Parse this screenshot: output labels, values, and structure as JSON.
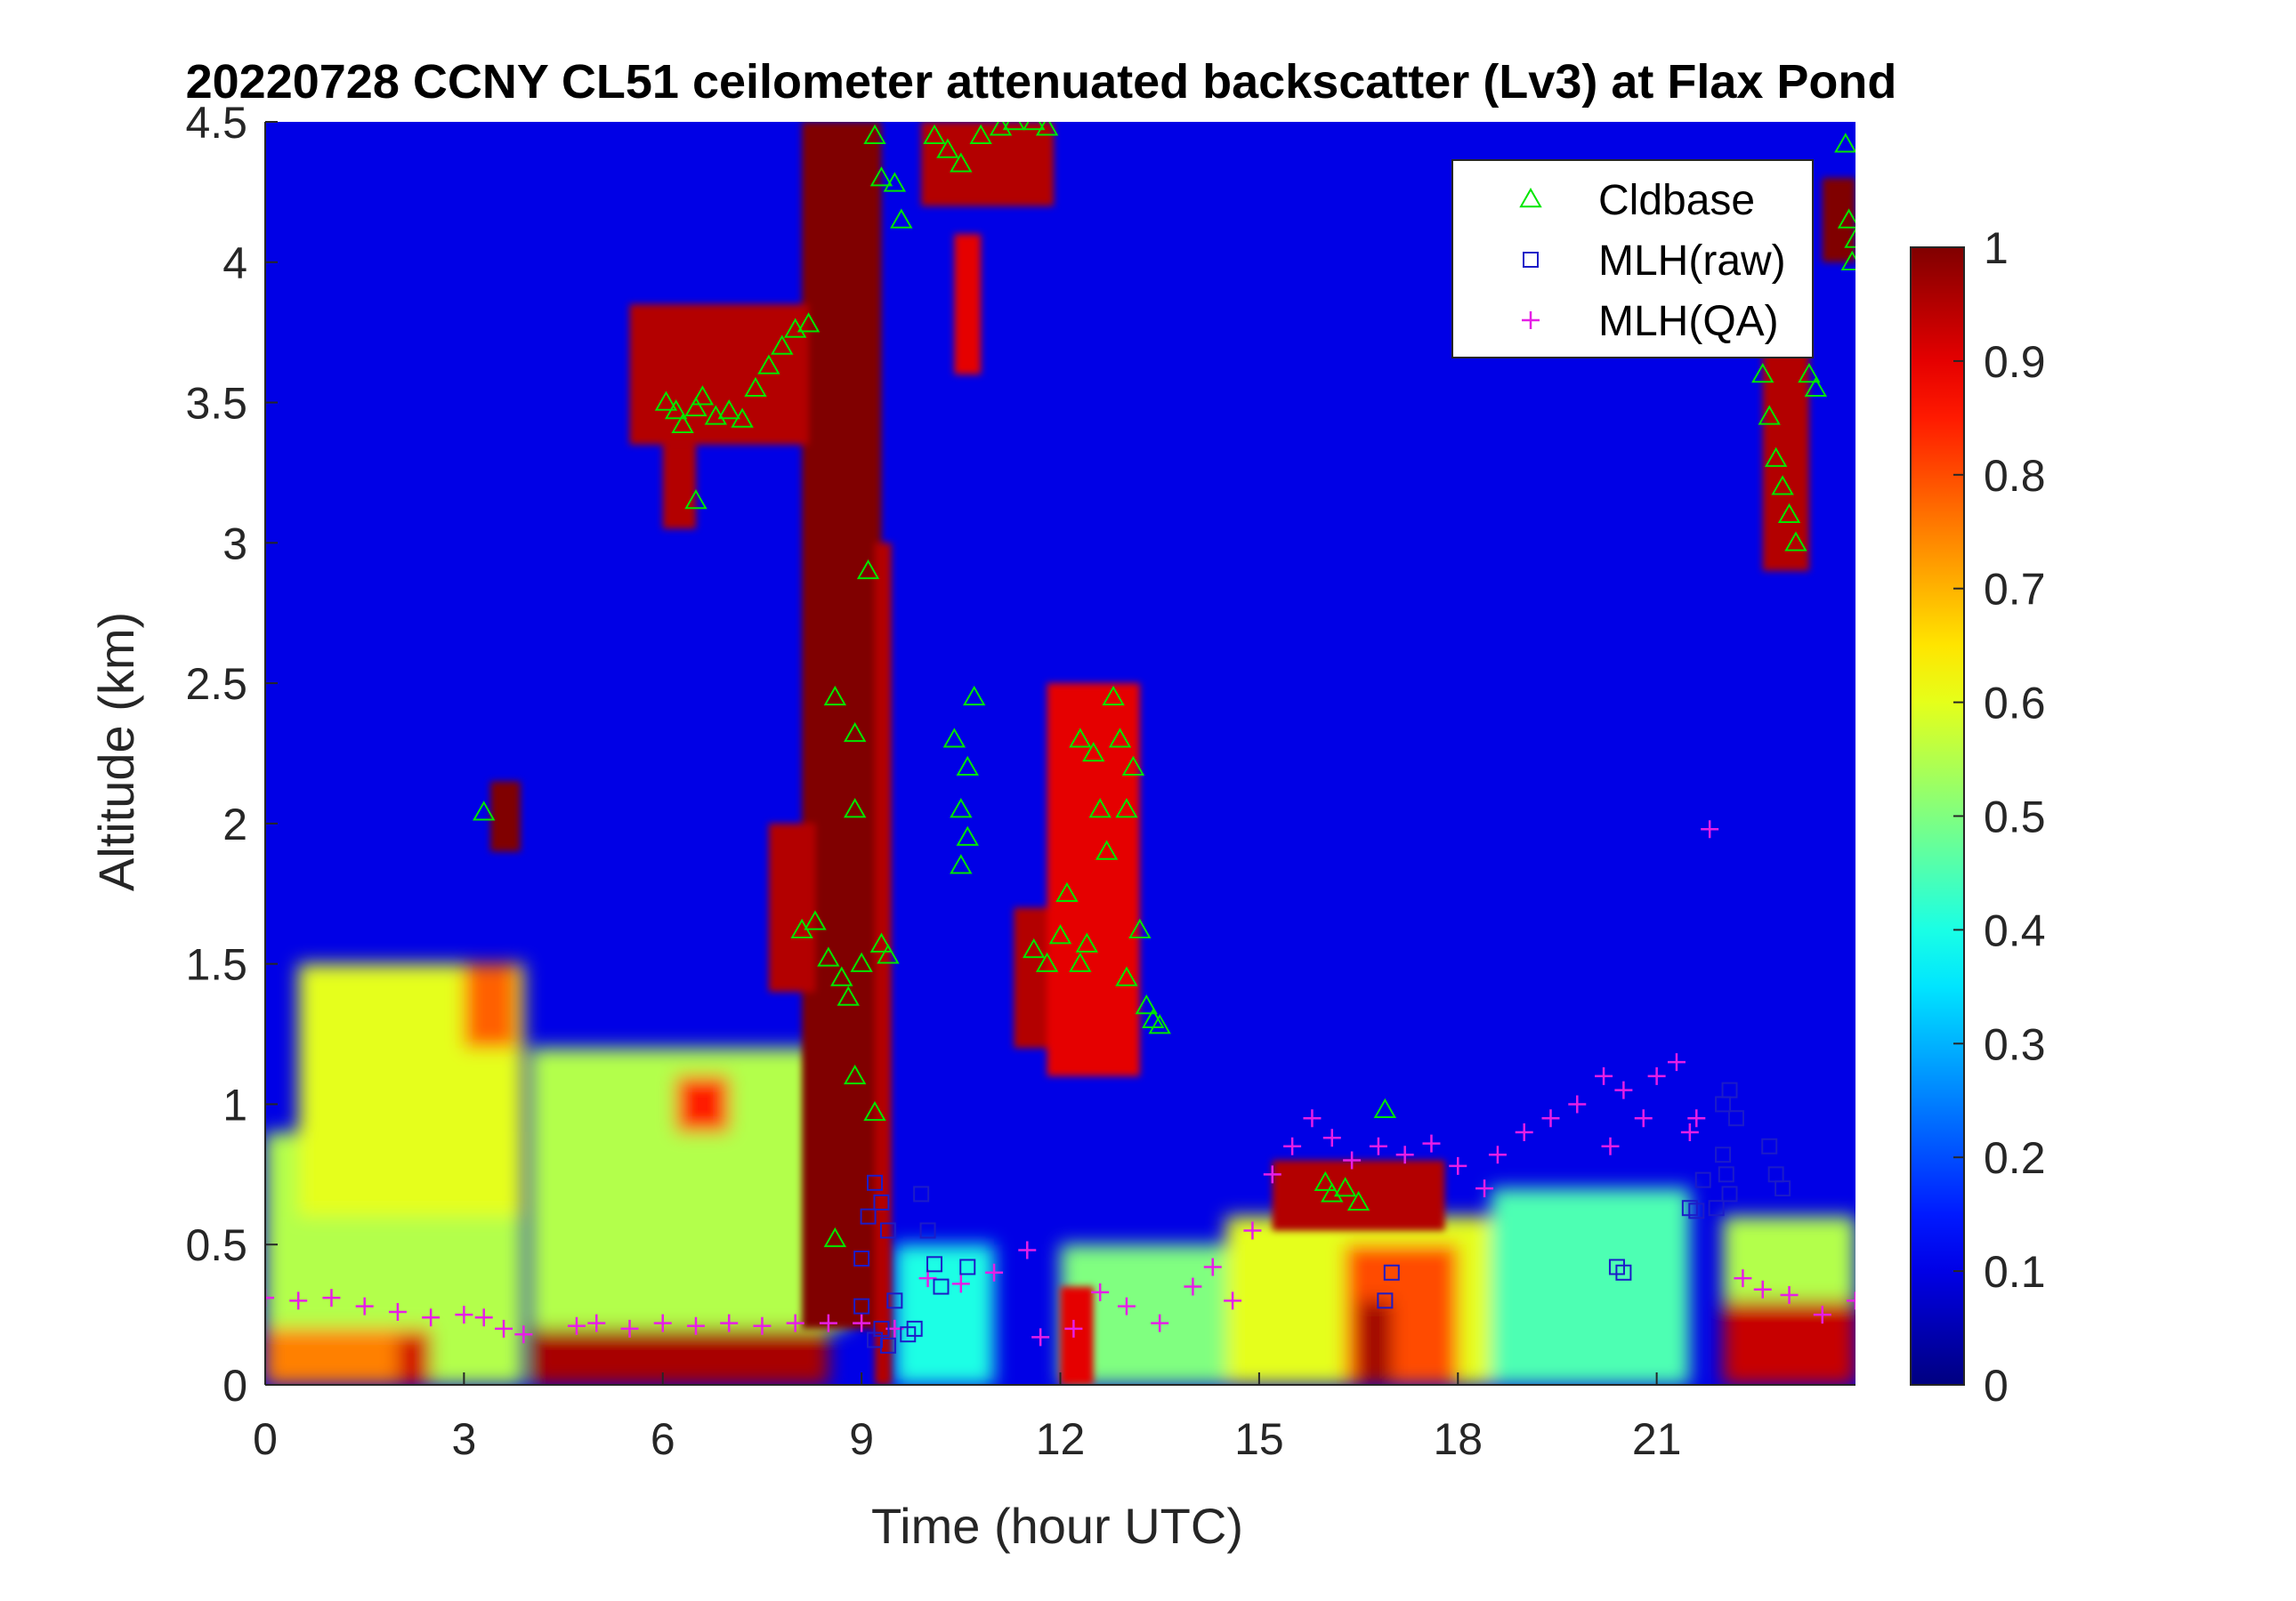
{
  "chart_data": {
    "type": "heatmap",
    "title": "20220728 CCNY CL51 ceilometer attenuated backscatter (Lv3) at Flax Pond",
    "xlabel": "Time (hour UTC)",
    "ylabel": "Altitude (km)",
    "xlim": [
      0,
      24
    ],
    "ylim": [
      0,
      4.5
    ],
    "x_ticks": [
      "0",
      "3",
      "6",
      "9",
      "12",
      "15",
      "18",
      "21"
    ],
    "y_ticks": [
      "0",
      "0.5",
      "1",
      "1.5",
      "2",
      "2.5",
      "3",
      "3.5",
      "4",
      "4.5"
    ],
    "colorbar": {
      "range": [
        0,
        1
      ],
      "ticks": [
        "0",
        "0.1",
        "0.2",
        "0.3",
        "0.4",
        "0.5",
        "0.6",
        "0.7",
        "0.8",
        "0.9",
        "1"
      ],
      "colormap": "jet"
    },
    "legend": {
      "position": "top-right",
      "entries": [
        {
          "label": "Cldbase",
          "marker": "triangle",
          "color": "#00e600"
        },
        {
          "label": "MLH(raw)",
          "marker": "square",
          "color": "#1c1cc8"
        },
        {
          "label": "MLH(QA)",
          "marker": "plus",
          "color": "#e61ee6"
        }
      ]
    },
    "backscatter_field": {
      "background": 0.1,
      "boundary_layer_features": [
        {
          "x": [
            0,
            3.9
          ],
          "y": [
            0,
            0.9
          ],
          "value": 0.55
        },
        {
          "x": [
            0.5,
            3.9
          ],
          "y": [
            0.6,
            1.5
          ],
          "value": 0.6
        },
        {
          "x": [
            3,
            3.8
          ],
          "y": [
            1.2,
            1.5
          ],
          "value": 0.78
        },
        {
          "x": [
            0,
            2.5
          ],
          "y": [
            0,
            0.2
          ],
          "value": 0.75
        },
        {
          "x": [
            2,
            2.5
          ],
          "y": [
            0,
            0.18
          ],
          "value": 0.92
        },
        {
          "x": [
            4,
            8.5
          ],
          "y": [
            0,
            0.2
          ],
          "value": 0.96
        },
        {
          "x": [
            4,
            8.8
          ],
          "y": [
            0.2,
            1.2
          ],
          "value": 0.55
        },
        {
          "x": [
            6.2,
            7
          ],
          "y": [
            0.9,
            1.1
          ],
          "value": 0.85
        },
        {
          "x": [
            9.5,
            11
          ],
          "y": [
            0,
            0.5
          ],
          "value": 0.4
        },
        {
          "x": [
            12,
            13.5
          ],
          "y": [
            0,
            0.2
          ],
          "value": 0.95
        },
        {
          "x": [
            12,
            14.5
          ],
          "y": [
            0,
            0.5
          ],
          "value": 0.5
        },
        {
          "x": [
            14.5,
            18.5
          ],
          "y": [
            0,
            0.6
          ],
          "value": 0.6
        },
        {
          "x": [
            16.3,
            18
          ],
          "y": [
            0,
            0.5
          ],
          "value": 0.8
        },
        {
          "x": [
            16.5,
            17
          ],
          "y": [
            0,
            0.3
          ],
          "value": 0.97
        },
        {
          "x": [
            18.5,
            21.5
          ],
          "y": [
            0,
            0.7
          ],
          "value": 0.45
        },
        {
          "x": [
            22,
            24
          ],
          "y": [
            0,
            0.3
          ],
          "value": 0.93
        },
        {
          "x": [
            22,
            24
          ],
          "y": [
            0.3,
            0.6
          ],
          "value": 0.55
        }
      ],
      "cloud_features": [
        {
          "x": [
            8.1,
            9.3
          ],
          "y": [
            0.2,
            4.5
          ],
          "value": 1.0
        },
        {
          "x": [
            9.2,
            9.45
          ],
          "y": [
            0,
            3.0
          ],
          "value": 0.95
        },
        {
          "x": [
            5.5,
            8.2
          ],
          "y": [
            3.35,
            3.85
          ],
          "value": 0.95
        },
        {
          "x": [
            3.4,
            3.85
          ],
          "y": [
            1.9,
            2.15
          ],
          "value": 1.0
        },
        {
          "x": [
            7.6,
            8.3
          ],
          "y": [
            1.4,
            2.0
          ],
          "value": 0.95
        },
        {
          "x": [
            11.3,
            12.6
          ],
          "y": [
            1.2,
            1.7
          ],
          "value": 0.95
        },
        {
          "x": [
            11.8,
            13.2
          ],
          "y": [
            1.1,
            2.5
          ],
          "value": 0.9
        },
        {
          "x": [
            9.9,
            11.9
          ],
          "y": [
            4.2,
            4.5
          ],
          "value": 0.95
        },
        {
          "x": [
            22.6,
            23.3
          ],
          "y": [
            2.9,
            3.7
          ],
          "value": 0.95
        },
        {
          "x": [
            23.5,
            24
          ],
          "y": [
            4.0,
            4.3
          ],
          "value": 1.0
        },
        {
          "x": [
            6,
            6.5
          ],
          "y": [
            3.05,
            3.35
          ],
          "value": 0.95
        },
        {
          "x": [
            10.4,
            10.8
          ],
          "y": [
            3.6,
            4.1
          ],
          "value": 0.9
        },
        {
          "x": [
            15.2,
            17.8
          ],
          "y": [
            0.55,
            0.8
          ],
          "value": 0.95
        },
        {
          "x": [
            12,
            12.5
          ],
          "y": [
            0,
            0.35
          ],
          "value": 0.9
        }
      ]
    },
    "series": [
      {
        "name": "Cldbase",
        "points": [
          [
            3.3,
            2.04
          ],
          [
            6.05,
            3.5
          ],
          [
            6.2,
            3.47
          ],
          [
            6.3,
            3.42
          ],
          [
            6.5,
            3.48
          ],
          [
            6.6,
            3.52
          ],
          [
            6.8,
            3.45
          ],
          [
            7.0,
            3.47
          ],
          [
            7.2,
            3.44
          ],
          [
            7.4,
            3.55
          ],
          [
            7.6,
            3.63
          ],
          [
            7.8,
            3.7
          ],
          [
            8.0,
            3.76
          ],
          [
            8.2,
            3.78
          ],
          [
            6.5,
            3.15
          ],
          [
            8.1,
            1.62
          ],
          [
            8.3,
            1.65
          ],
          [
            8.5,
            1.52
          ],
          [
            8.7,
            1.45
          ],
          [
            8.8,
            1.38
          ],
          [
            9.0,
            1.5
          ],
          [
            8.6,
            2.45
          ],
          [
            8.9,
            2.32
          ],
          [
            9.1,
            2.9
          ],
          [
            8.9,
            2.05
          ],
          [
            8.9,
            1.1
          ],
          [
            9.2,
            0.97
          ],
          [
            8.6,
            0.52
          ],
          [
            9.3,
            1.57
          ],
          [
            9.4,
            1.53
          ],
          [
            9.2,
            4.45
          ],
          [
            9.3,
            4.3
          ],
          [
            9.5,
            4.28
          ],
          [
            9.6,
            4.15
          ],
          [
            10.1,
            4.45
          ],
          [
            10.3,
            4.4
          ],
          [
            10.5,
            4.35
          ],
          [
            10.8,
            4.45
          ],
          [
            11.1,
            4.48
          ],
          [
            11.3,
            4.5
          ],
          [
            11.6,
            4.5
          ],
          [
            11.8,
            4.48
          ],
          [
            10.4,
            2.3
          ],
          [
            10.5,
            2.05
          ],
          [
            10.6,
            1.95
          ],
          [
            10.5,
            1.85
          ],
          [
            10.7,
            2.45
          ],
          [
            10.6,
            2.2
          ],
          [
            11.6,
            1.55
          ],
          [
            11.8,
            1.5
          ],
          [
            12.0,
            1.6
          ],
          [
            12.1,
            1.75
          ],
          [
            12.3,
            1.5
          ],
          [
            12.4,
            1.57
          ],
          [
            12.3,
            2.3
          ],
          [
            12.5,
            2.25
          ],
          [
            12.6,
            2.05
          ],
          [
            12.8,
            2.45
          ],
          [
            12.9,
            2.3
          ],
          [
            13.0,
            2.05
          ],
          [
            13.1,
            2.2
          ],
          [
            12.7,
            1.9
          ],
          [
            13.0,
            1.45
          ],
          [
            13.2,
            1.62
          ],
          [
            13.3,
            1.35
          ],
          [
            13.4,
            1.3
          ],
          [
            13.5,
            1.28
          ],
          [
            16.0,
            0.72
          ],
          [
            16.1,
            0.68
          ],
          [
            16.3,
            0.7
          ],
          [
            16.5,
            0.65
          ],
          [
            16.9,
            0.98
          ],
          [
            22.6,
            3.6
          ],
          [
            22.7,
            3.45
          ],
          [
            22.8,
            3.3
          ],
          [
            22.9,
            3.2
          ],
          [
            23.0,
            3.1
          ],
          [
            23.1,
            3.0
          ],
          [
            23.3,
            3.6
          ],
          [
            23.4,
            3.55
          ],
          [
            23.85,
            4.42
          ],
          [
            23.9,
            4.15
          ],
          [
            24.0,
            4.08
          ],
          [
            23.95,
            4.0
          ]
        ]
      },
      {
        "name": "MLH(raw)",
        "points": [
          [
            9.0,
            0.45
          ],
          [
            9.1,
            0.6
          ],
          [
            9.2,
            0.72
          ],
          [
            9.3,
            0.65
          ],
          [
            9.4,
            0.55
          ],
          [
            9.3,
            0.2
          ],
          [
            9.2,
            0.16
          ],
          [
            9.4,
            0.14
          ],
          [
            9.0,
            0.28
          ],
          [
            9.9,
            0.68
          ],
          [
            10.0,
            0.55
          ],
          [
            10.1,
            0.43
          ],
          [
            10.2,
            0.35
          ],
          [
            9.8,
            0.2
          ],
          [
            9.7,
            0.18
          ],
          [
            9.5,
            0.3
          ],
          [
            10.6,
            0.42
          ],
          [
            16.9,
            0.3
          ],
          [
            17.0,
            0.4
          ],
          [
            20.4,
            0.42
          ],
          [
            20.5,
            0.4
          ],
          [
            21.5,
            0.63
          ],
          [
            21.6,
            0.62
          ],
          [
            22.0,
            1.0
          ],
          [
            22.1,
            1.05
          ],
          [
            22.2,
            0.95
          ],
          [
            22.0,
            0.82
          ],
          [
            22.05,
            0.75
          ],
          [
            22.1,
            0.68
          ],
          [
            21.9,
            0.63
          ],
          [
            22.7,
            0.85
          ],
          [
            22.8,
            0.75
          ],
          [
            22.9,
            0.7
          ],
          [
            21.7,
            0.73
          ]
        ]
      },
      {
        "name": "MLH(QA)",
        "points": [
          [
            0,
            0.31
          ],
          [
            0.5,
            0.3
          ],
          [
            1.0,
            0.31
          ],
          [
            1.5,
            0.28
          ],
          [
            2.0,
            0.26
          ],
          [
            2.5,
            0.24
          ],
          [
            3.0,
            0.25
          ],
          [
            3.3,
            0.24
          ],
          [
            3.6,
            0.2
          ],
          [
            3.9,
            0.18
          ],
          [
            4.7,
            0.21
          ],
          [
            5.0,
            0.22
          ],
          [
            5.5,
            0.2
          ],
          [
            6.0,
            0.22
          ],
          [
            6.5,
            0.21
          ],
          [
            7.0,
            0.22
          ],
          [
            7.5,
            0.21
          ],
          [
            8.0,
            0.22
          ],
          [
            8.5,
            0.22
          ],
          [
            9.0,
            0.22
          ],
          [
            9.5,
            0.2
          ],
          [
            10.0,
            0.38
          ],
          [
            10.5,
            0.36
          ],
          [
            11.0,
            0.4
          ],
          [
            11.5,
            0.48
          ],
          [
            11.7,
            0.17
          ],
          [
            12.2,
            0.2
          ],
          [
            12.6,
            0.33
          ],
          [
            13.0,
            0.28
          ],
          [
            13.5,
            0.22
          ],
          [
            14.0,
            0.35
          ],
          [
            14.3,
            0.42
          ],
          [
            14.6,
            0.3
          ],
          [
            14.9,
            0.55
          ],
          [
            15.2,
            0.75
          ],
          [
            15.5,
            0.85
          ],
          [
            15.8,
            0.95
          ],
          [
            16.1,
            0.88
          ],
          [
            16.4,
            0.8
          ],
          [
            16.8,
            0.85
          ],
          [
            17.2,
            0.82
          ],
          [
            17.6,
            0.86
          ],
          [
            18.0,
            0.78
          ],
          [
            18.4,
            0.7
          ],
          [
            18.6,
            0.82
          ],
          [
            19.0,
            0.9
          ],
          [
            19.4,
            0.95
          ],
          [
            19.8,
            1.0
          ],
          [
            20.2,
            1.1
          ],
          [
            20.5,
            1.05
          ],
          [
            20.8,
            0.95
          ],
          [
            21.0,
            1.1
          ],
          [
            21.3,
            1.15
          ],
          [
            21.6,
            0.95
          ],
          [
            21.8,
            1.98
          ],
          [
            21.5,
            0.9
          ],
          [
            22.3,
            0.38
          ],
          [
            22.6,
            0.34
          ],
          [
            23.0,
            0.32
          ],
          [
            23.5,
            0.25
          ],
          [
            24.0,
            0.3
          ],
          [
            20.3,
            0.85
          ]
        ]
      }
    ]
  }
}
